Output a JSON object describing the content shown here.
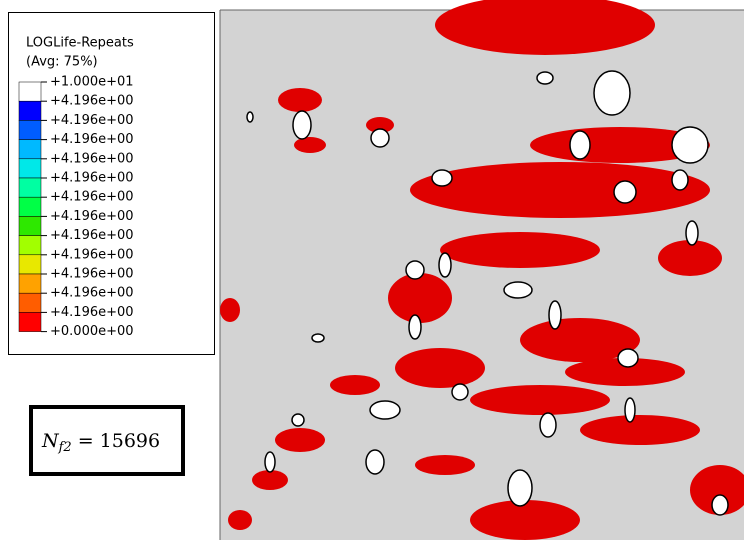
{
  "legend": {
    "title": "LOGLife-Repeats",
    "subtitle": "(Avg: 75%)",
    "labels": [
      "+1.000e+01",
      "+4.196e+00",
      "+4.196e+00",
      "+4.196e+00",
      "+4.196e+00",
      "+4.196e+00",
      "+4.196e+00",
      "+4.196e+00",
      "+4.196e+00",
      "+4.196e+00",
      "+4.196e+00",
      "+4.196e+00",
      "+4.196e+00",
      "+0.000e+00"
    ],
    "colors": [
      "#ffffff",
      "#0000ff",
      "#005dff",
      "#00b9ff",
      "#00e8e8",
      "#00ffa2",
      "#00ff46",
      "#2ee800",
      "#a2ff00",
      "#e8e800",
      "#ffa200",
      "#ff5d00",
      "#ff0000"
    ]
  },
  "annotation": {
    "symbol": "N",
    "subscript": "f2",
    "relation": "=",
    "value": "15696"
  }
}
